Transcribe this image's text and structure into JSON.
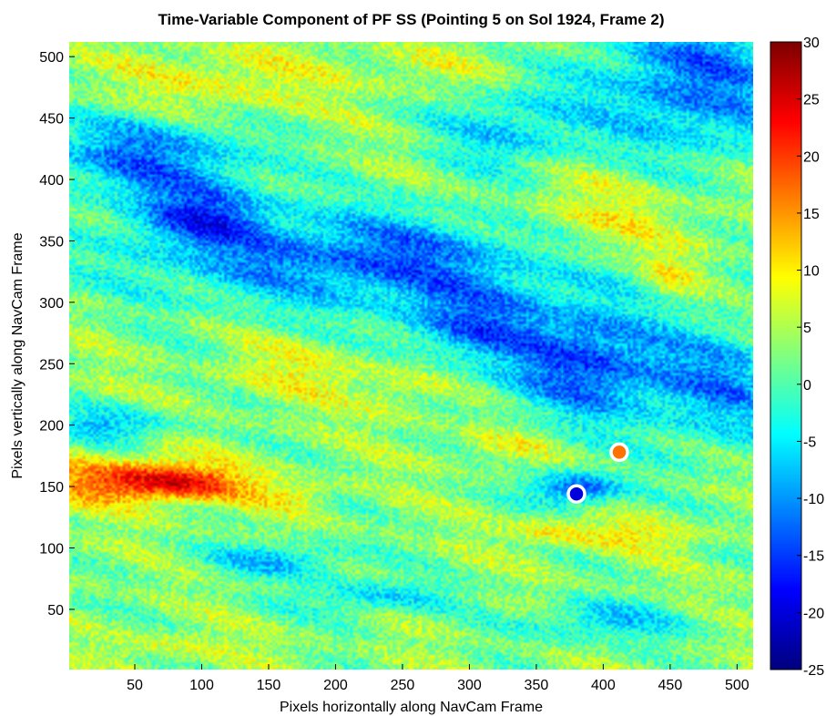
{
  "chart_data": {
    "type": "heatmap",
    "title": "Time-Variable Component of PF SS (Pointing 5 on Sol 1924, Frame 2)",
    "xlabel": "Pixels horizontally along NavCam Frame",
    "ylabel": "Pixels vertically along NavCam Frame",
    "xlim": [
      1,
      512
    ],
    "ylim": [
      1,
      512
    ],
    "x_ticks": [
      50,
      100,
      150,
      200,
      250,
      300,
      350,
      400,
      450,
      500
    ],
    "y_ticks": [
      50,
      100,
      150,
      200,
      250,
      300,
      350,
      400,
      450,
      500
    ],
    "x_tick_labels": [
      "50",
      "100",
      "150",
      "200",
      "250",
      "300",
      "350",
      "400",
      "450",
      "500"
    ],
    "y_tick_labels": [
      "50",
      "100",
      "150",
      "200",
      "250",
      "300",
      "350",
      "400",
      "450",
      "500"
    ],
    "colorbar": {
      "colormap": "jet",
      "range": [
        -25,
        30
      ],
      "ticks": [
        -25,
        -20,
        -15,
        -10,
        -5,
        0,
        5,
        10,
        15,
        20,
        25,
        30
      ],
      "tick_labels": [
        "-25",
        "-20",
        "-15",
        "-10",
        "-5",
        "0",
        "5",
        "10",
        "15",
        "20",
        "25",
        "30"
      ]
    },
    "baseline_value": 3,
    "features": [
      {
        "x": 45,
        "y": 155,
        "sx": 45,
        "sy": 13,
        "value": 20
      },
      {
        "x": 95,
        "y": 152,
        "sx": 30,
        "sy": 10,
        "value": 14
      },
      {
        "x": 165,
        "y": 143,
        "sx": 22,
        "sy": 8,
        "value": 9
      },
      {
        "x": 395,
        "y": 360,
        "sx": 55,
        "sy": 30,
        "value": 11
      },
      {
        "x": 450,
        "y": 320,
        "sx": 15,
        "sy": 15,
        "value": 9
      },
      {
        "x": 105,
        "y": 475,
        "sx": 55,
        "sy": 22,
        "value": 9
      },
      {
        "x": 260,
        "y": 490,
        "sx": 45,
        "sy": 15,
        "value": 6
      },
      {
        "x": 175,
        "y": 245,
        "sx": 35,
        "sy": 18,
        "value": 8
      },
      {
        "x": 250,
        "y": 230,
        "sx": 25,
        "sy": 18,
        "value": 7
      },
      {
        "x": 420,
        "y": 110,
        "sx": 40,
        "sy": 8,
        "value": 9
      },
      {
        "x": 360,
        "y": 115,
        "sx": 20,
        "sy": 8,
        "value": 8
      },
      {
        "x": 80,
        "y": 20,
        "sx": 40,
        "sy": 8,
        "value": 7
      },
      {
        "x": 330,
        "y": 185,
        "sx": 25,
        "sy": 12,
        "value": 8
      },
      {
        "x": 60,
        "y": 420,
        "sx": 55,
        "sy": 25,
        "value": -12
      },
      {
        "x": 100,
        "y": 370,
        "sx": 35,
        "sy": 18,
        "value": -11
      },
      {
        "x": 230,
        "y": 335,
        "sx": 120,
        "sy": 28,
        "value": -13
      },
      {
        "x": 390,
        "y": 250,
        "sx": 45,
        "sy": 35,
        "value": -14
      },
      {
        "x": 470,
        "y": 480,
        "sx": 55,
        "sy": 45,
        "value": -12
      },
      {
        "x": 490,
        "y": 230,
        "sx": 35,
        "sy": 35,
        "value": -9
      },
      {
        "x": 300,
        "y": 280,
        "sx": 40,
        "sy": 22,
        "value": -9
      },
      {
        "x": 380,
        "y": 148,
        "sx": 25,
        "sy": 10,
        "value": -13
      },
      {
        "x": 160,
        "y": 90,
        "sx": 40,
        "sy": 10,
        "value": -7
      },
      {
        "x": 230,
        "y": 60,
        "sx": 40,
        "sy": 10,
        "value": -6
      },
      {
        "x": 30,
        "y": 200,
        "sx": 35,
        "sy": 10,
        "value": -7
      },
      {
        "x": 400,
        "y": 40,
        "sx": 45,
        "sy": 12,
        "value": -6
      },
      {
        "x": 330,
        "y": 440,
        "sx": 40,
        "sy": 25,
        "value": -6
      }
    ],
    "markers": [
      {
        "x": 412,
        "y": 178,
        "fill_value": 17,
        "ring": "white"
      },
      {
        "x": 380,
        "y": 144,
        "fill_value": -20,
        "ring": "white"
      }
    ]
  }
}
